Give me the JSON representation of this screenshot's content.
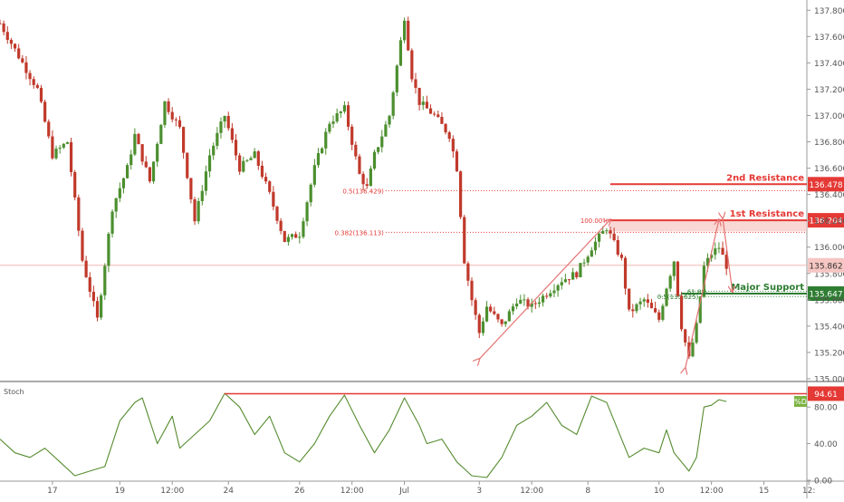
{
  "chart_data": {
    "type": "candlestick",
    "price_axis": {
      "ticks": [
        135.0,
        135.2,
        135.4,
        135.6,
        135.8,
        136.0,
        136.2,
        136.4,
        136.6,
        136.8,
        137.0,
        137.2,
        137.4,
        137.6,
        137.8
      ],
      "tick_labels": [
        "135.000",
        "135.200",
        "135.400",
        "135.600",
        "135.800",
        "136.000",
        "136.200",
        "136.400",
        "136.600",
        "136.800",
        "137.000",
        "137.200",
        "137.400",
        "137.600",
        "137.800"
      ],
      "range": [
        135.0,
        137.85
      ]
    },
    "time_axis": {
      "index_range": [
        0,
        100
      ],
      "labels": [
        {
          "text": "17",
          "index": 7
        },
        {
          "text": "19",
          "index": 16
        },
        {
          "text": "12:00",
          "index": 23
        },
        {
          "text": "24",
          "index": 30.5
        },
        {
          "text": "26",
          "index": 40
        },
        {
          "text": "12:00",
          "index": 47
        },
        {
          "text": "Jul",
          "index": 54
        },
        {
          "text": "3",
          "index": 64
        },
        {
          "text": "12:00",
          "index": 71
        },
        {
          "text": "8",
          "index": 78.5
        },
        {
          "text": "10",
          "index": 88
        },
        {
          "text": "12:00",
          "index": 95
        },
        {
          "text": "15",
          "index": 102
        },
        {
          "text": "12:",
          "index": 108
        }
      ]
    },
    "price_path": [
      [
        0,
        137.7
      ],
      [
        3,
        137.4
      ],
      [
        5,
        137.2
      ],
      [
        7,
        136.7
      ],
      [
        9,
        136.8
      ],
      [
        11,
        135.9
      ],
      [
        13,
        135.45
      ],
      [
        15,
        136.3
      ],
      [
        17,
        136.6
      ],
      [
        18,
        136.85
      ],
      [
        20,
        136.5
      ],
      [
        22,
        137.1
      ],
      [
        24,
        136.9
      ],
      [
        26,
        136.2
      ],
      [
        28,
        136.7
      ],
      [
        30,
        137.0
      ],
      [
        32,
        136.6
      ],
      [
        34,
        136.7
      ],
      [
        36,
        136.4
      ],
      [
        38,
        136.05
      ],
      [
        40,
        136.1
      ],
      [
        42,
        136.6
      ],
      [
        44,
        136.95
      ],
      [
        46,
        137.05
      ],
      [
        48,
        136.55
      ],
      [
        49,
        136.45
      ],
      [
        50,
        136.7
      ],
      [
        52,
        137.0
      ],
      [
        54,
        137.75
      ],
      [
        55,
        137.3
      ],
      [
        56,
        137.1
      ],
      [
        58,
        137.0
      ],
      [
        60,
        136.85
      ],
      [
        61,
        136.6
      ],
      [
        62,
        135.9
      ],
      [
        63,
        135.6
      ],
      [
        64,
        135.35
      ],
      [
        65,
        135.55
      ],
      [
        67,
        135.4
      ],
      [
        69,
        135.6
      ],
      [
        71,
        135.55
      ],
      [
        73,
        135.65
      ],
      [
        75,
        135.75
      ],
      [
        77,
        135.8
      ],
      [
        79,
        136.0
      ],
      [
        81,
        136.15
      ],
      [
        83,
        135.9
      ],
      [
        84,
        135.5
      ],
      [
        86,
        135.6
      ],
      [
        88,
        135.45
      ],
      [
        89,
        135.7
      ],
      [
        90,
        135.9
      ],
      [
        91,
        135.4
      ],
      [
        92,
        135.15
      ],
      [
        93,
        135.4
      ],
      [
        94,
        135.85
      ],
      [
        95,
        135.95
      ],
      [
        96,
        136.0
      ],
      [
        97,
        135.86
      ]
    ],
    "current_price": "135.862",
    "levels": [
      {
        "label": "2nd Resistance",
        "value": 136.478,
        "value_label": "136.478",
        "color": "#e53935",
        "from_index": 81.5
      },
      {
        "label": "1st Resistance",
        "value": 136.204,
        "value_label": "136.204",
        "color": "#e53935",
        "from_index": 81.5
      },
      {
        "label": "Major Support",
        "value": 135.647,
        "value_label": "135.647",
        "color": "#2e7d32",
        "from_index": 91
      }
    ],
    "fibonacci": [
      {
        "label": "0.5(136.429)",
        "value": 136.429,
        "color": "#e53935",
        "from_index": 51.5
      },
      {
        "label": "0.382(136.113)",
        "value": 136.113,
        "color": "#e53935",
        "from_index": 51.5
      },
      {
        "label": "100.00%",
        "value": 136.204,
        "color": "#e53935",
        "from_index": 81.5
      },
      {
        "label": "0.5(135.625)",
        "value": 135.625,
        "color": "#2e7d32",
        "from_index": 88
      },
      {
        "label": "61.8%",
        "value": 135.665,
        "color": "#2e7d32",
        "from_index": 92
      }
    ],
    "resistance_zone": {
      "from_index": 81.5,
      "top": 136.204,
      "bottom": 136.12
    },
    "arrows": [
      {
        "from": [
          64,
          135.15
        ],
        "to": [
          81.5,
          136.21
        ]
      },
      {
        "from": [
          91.5,
          135.08
        ],
        "to": [
          96,
          136.21
        ]
      },
      {
        "from": [
          96.5,
          136.22
        ],
        "to": [
          97.8,
          135.66
        ]
      }
    ],
    "stochastic": {
      "title": "Stoch",
      "value_label": "%D",
      "ticks": [
        0,
        40,
        80
      ],
      "tick_labels": [
        "0.00",
        "40.00",
        "80.00"
      ],
      "range": [
        0,
        100
      ],
      "level": {
        "value": 94.61,
        "label": "94.61",
        "from_index": 30
      },
      "path": [
        [
          0,
          45
        ],
        [
          2,
          30
        ],
        [
          4,
          25
        ],
        [
          6,
          35
        ],
        [
          8,
          20
        ],
        [
          10,
          5
        ],
        [
          12,
          10
        ],
        [
          14,
          15
        ],
        [
          16,
          65
        ],
        [
          18,
          85
        ],
        [
          19,
          90
        ],
        [
          21,
          40
        ],
        [
          23,
          70
        ],
        [
          24,
          35
        ],
        [
          26,
          50
        ],
        [
          28,
          65
        ],
        [
          30,
          95
        ],
        [
          32,
          80
        ],
        [
          34,
          50
        ],
        [
          36,
          70
        ],
        [
          38,
          30
        ],
        [
          40,
          20
        ],
        [
          42,
          40
        ],
        [
          44,
          70
        ],
        [
          46,
          93
        ],
        [
          48,
          60
        ],
        [
          50,
          30
        ],
        [
          52,
          55
        ],
        [
          54,
          90
        ],
        [
          56,
          60
        ],
        [
          57,
          40
        ],
        [
          59,
          45
        ],
        [
          61,
          20
        ],
        [
          63,
          5
        ],
        [
          65,
          3
        ],
        [
          67,
          25
        ],
        [
          69,
          60
        ],
        [
          71,
          70
        ],
        [
          73,
          85
        ],
        [
          75,
          60
        ],
        [
          77,
          50
        ],
        [
          79,
          92
        ],
        [
          81,
          85
        ],
        [
          83,
          45
        ],
        [
          84,
          25
        ],
        [
          86,
          35
        ],
        [
          88,
          30
        ],
        [
          89,
          55
        ],
        [
          90,
          30
        ],
        [
          92,
          10
        ],
        [
          93,
          25
        ],
        [
          94,
          80
        ],
        [
          95,
          82
        ],
        [
          96,
          88
        ],
        [
          97,
          86
        ]
      ]
    }
  }
}
